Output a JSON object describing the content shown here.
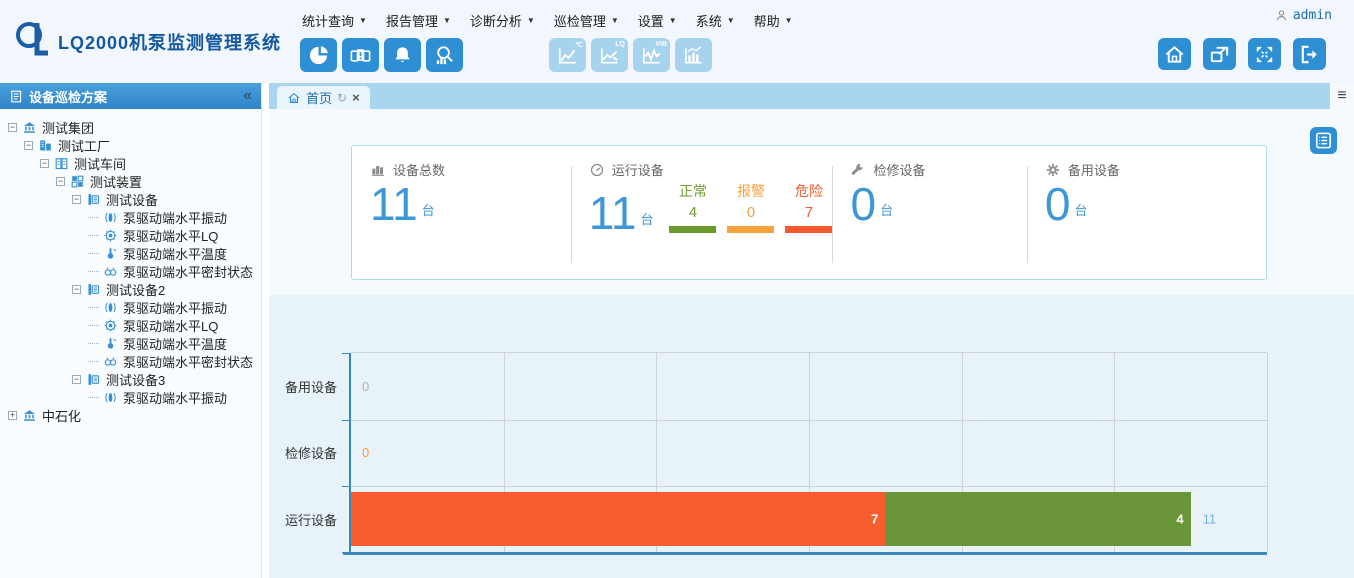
{
  "header": {
    "app_title": "LQ2000机泵监测管理系统",
    "user": {
      "name": "admin"
    }
  },
  "nav": {
    "caret": "▼",
    "items": [
      {
        "label": "统计查询"
      },
      {
        "label": "报告管理"
      },
      {
        "label": "诊断分析"
      },
      {
        "label": "巡检管理"
      },
      {
        "label": "设置"
      },
      {
        "label": "系统"
      },
      {
        "label": "帮助"
      }
    ]
  },
  "toolbar": {
    "primary": [
      {
        "icon": "pie-chart-icon"
      },
      {
        "icon": "monitors-icon"
      },
      {
        "icon": "alarm-bell-icon"
      },
      {
        "icon": "search-stats-icon"
      }
    ],
    "secondary": [
      {
        "icon": "temp-trend-icon",
        "label": "℃"
      },
      {
        "icon": "lq-trend-icon",
        "label": "LQ"
      },
      {
        "icon": "vib-trend-icon",
        "label": "VIB"
      },
      {
        "icon": "bar-trend-icon",
        "label": ""
      }
    ],
    "window": [
      {
        "icon": "home-icon"
      },
      {
        "icon": "external-window-icon"
      },
      {
        "icon": "fullscreen-icon"
      },
      {
        "icon": "logout-icon"
      }
    ]
  },
  "sidebar": {
    "title": "设备巡检方案",
    "collapse_glyph": "«",
    "tree": [
      {
        "level": 0,
        "icon": "org-icon",
        "label": "测试集团",
        "expander": "minus"
      },
      {
        "level": 1,
        "icon": "factory-icon",
        "label": "测试工厂",
        "expander": "minus"
      },
      {
        "level": 2,
        "icon": "workshop-icon",
        "label": "测试车间",
        "expander": "minus"
      },
      {
        "level": 3,
        "icon": "unit-icon",
        "label": "测试装置",
        "expander": "minus"
      },
      {
        "level": 4,
        "icon": "equipment-icon",
        "label": "测试设备",
        "expander": "minus"
      },
      {
        "level": 5,
        "icon": "vibration-icon",
        "label": "泵驱动端水平振动"
      },
      {
        "level": 5,
        "icon": "lq-icon",
        "label": "泵驱动端水平LQ"
      },
      {
        "level": 5,
        "icon": "temperature-icon",
        "label": "泵驱动端水平温度"
      },
      {
        "level": 5,
        "icon": "seal-icon",
        "label": "泵驱动端水平密封状态"
      },
      {
        "level": 4,
        "icon": "equipment-icon",
        "label": "测试设备2",
        "expander": "minus"
      },
      {
        "level": 5,
        "icon": "vibration-icon",
        "label": "泵驱动端水平振动"
      },
      {
        "level": 5,
        "icon": "lq-icon",
        "label": "泵驱动端水平LQ"
      },
      {
        "level": 5,
        "icon": "temperature-icon",
        "label": "泵驱动端水平温度"
      },
      {
        "level": 5,
        "icon": "seal-icon",
        "label": "泵驱动端水平密封状态"
      },
      {
        "level": 4,
        "icon": "equipment-icon",
        "label": "测试设备3",
        "expander": "minus"
      },
      {
        "level": 5,
        "icon": "vibration-icon",
        "label": "泵驱动端水平振动"
      },
      {
        "level": 0,
        "icon": "org-icon",
        "label": "中石化",
        "expander": "plus"
      }
    ]
  },
  "tabs": {
    "active": {
      "label": "首页",
      "refresh_glyph": "↻",
      "close_glyph": "×"
    },
    "menu_glyph": "≡"
  },
  "stats": {
    "cards": [
      {
        "icon": "devices-total-icon",
        "label": "设备总数",
        "value": "11",
        "unit": "台"
      },
      {
        "icon": "gauge-icon",
        "label": "运行设备",
        "value": "11",
        "unit": "台",
        "sub": [
          {
            "label": "正常",
            "value": "4",
            "color": "#6d9a2f"
          },
          {
            "label": "报警",
            "value": "0",
            "color": "#f9a13c"
          },
          {
            "label": "危险",
            "value": "7",
            "color": "#f45a2d"
          }
        ]
      },
      {
        "icon": "wrench-icon",
        "label": "检修设备",
        "value": "0",
        "unit": "台"
      },
      {
        "icon": "gear-icon",
        "label": "备用设备",
        "value": "0",
        "unit": "台"
      }
    ]
  },
  "chart_data": {
    "type": "bar",
    "orientation": "horizontal",
    "categories": [
      "备用设备",
      "检修设备",
      "运行设备"
    ],
    "series": [
      {
        "name": "危险",
        "color": "#f75d2e",
        "values": [
          0,
          0,
          7
        ]
      },
      {
        "name": "正常",
        "color": "#6b9539",
        "values": [
          0,
          0,
          4
        ]
      }
    ],
    "totals": [
      0,
      0,
      11
    ],
    "total_label_color": "#6cb2e2",
    "zero_labels": [
      {
        "row": 0,
        "value": "0",
        "color": "#b3b3b3"
      },
      {
        "row": 1,
        "value": "0",
        "color": "#f9a13c"
      }
    ],
    "xlim": [
      0,
      12
    ],
    "gridline_step": 2,
    "grid": true,
    "legend": "none",
    "title": ""
  }
}
